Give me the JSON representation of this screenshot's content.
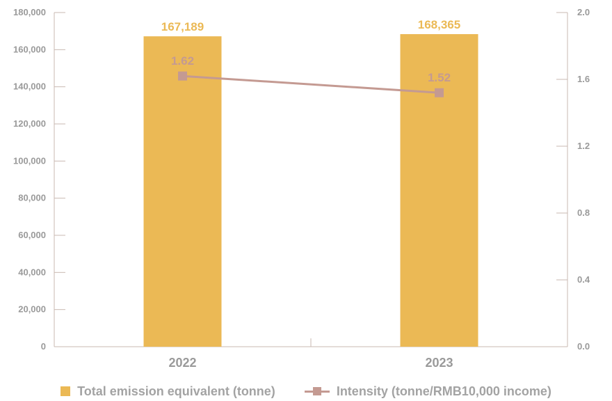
{
  "chart_data": {
    "type": "bar",
    "categories": [
      "2022",
      "2023"
    ],
    "series": [
      {
        "name": "Total emission equivalent (tonne)",
        "type": "bar",
        "axis": "left",
        "values": [
          167189,
          168365
        ],
        "value_labels": [
          "167,189",
          "168,365"
        ],
        "color": "#ebb955",
        "label_color": "#ebb955"
      },
      {
        "name": "Intensity (tonne/RMB10,000 income)",
        "type": "line",
        "axis": "right",
        "values": [
          1.62,
          1.52
        ],
        "value_labels": [
          "1.62",
          "1.52"
        ],
        "color": "#c49a92",
        "label_color": "#c49a92"
      }
    ],
    "y_left": {
      "min": 0,
      "max": 180000,
      "ticks": [
        0,
        20000,
        40000,
        60000,
        80000,
        100000,
        120000,
        140000,
        160000,
        180000
      ],
      "tick_labels": [
        "0",
        "20,000",
        "40,000",
        "60,000",
        "80,000",
        "100,000",
        "120,000",
        "140,000",
        "160,000",
        "180,000"
      ]
    },
    "y_right": {
      "min": 0,
      "max": 2.0,
      "ticks": [
        0,
        0.4,
        0.8,
        1.2,
        1.6,
        2.0
      ],
      "tick_labels": [
        "0.0",
        "0.4",
        "0.8",
        "1.2",
        "1.6",
        "2.0"
      ]
    },
    "grid": false,
    "legend_position": "bottom",
    "axis_color": "#c9b8b2"
  }
}
